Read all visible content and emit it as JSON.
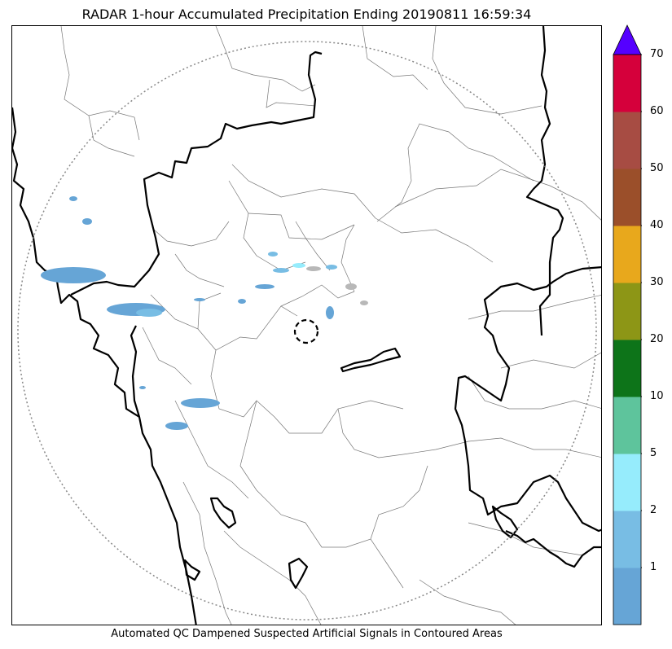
{
  "title": "RADAR 1-hour Accumulated Precipitation Ending 20190811 16:59:34",
  "footer_note": "Automated QC Dampened Suspected Artificial Signals in Contoured Areas",
  "colorbar": {
    "extend": "max",
    "extend_color": "#5500ff",
    "ticks": [
      "1",
      "2",
      "5",
      "10",
      "20",
      "30",
      "40",
      "50",
      "60",
      "70"
    ],
    "bands": [
      {
        "color": "#66a5d6"
      },
      {
        "color": "#78bde4"
      },
      {
        "color": "#96ecfc"
      },
      {
        "color": "#5ec49c"
      },
      {
        "color": "#0d7419"
      },
      {
        "color": "#8d9616"
      },
      {
        "color": "#e8a81c"
      },
      {
        "color": "#9b4f2a"
      },
      {
        "color": "#a74c43"
      },
      {
        "color": "#d5003b"
      }
    ]
  },
  "map": {
    "radar_range_ring": "dotted-circle",
    "radar_site_marker": "dashed-circle",
    "echo_colors": {
      "light": "#66a5d6",
      "light2": "#78bde4",
      "qc_gray": "#b8b8b8"
    }
  }
}
